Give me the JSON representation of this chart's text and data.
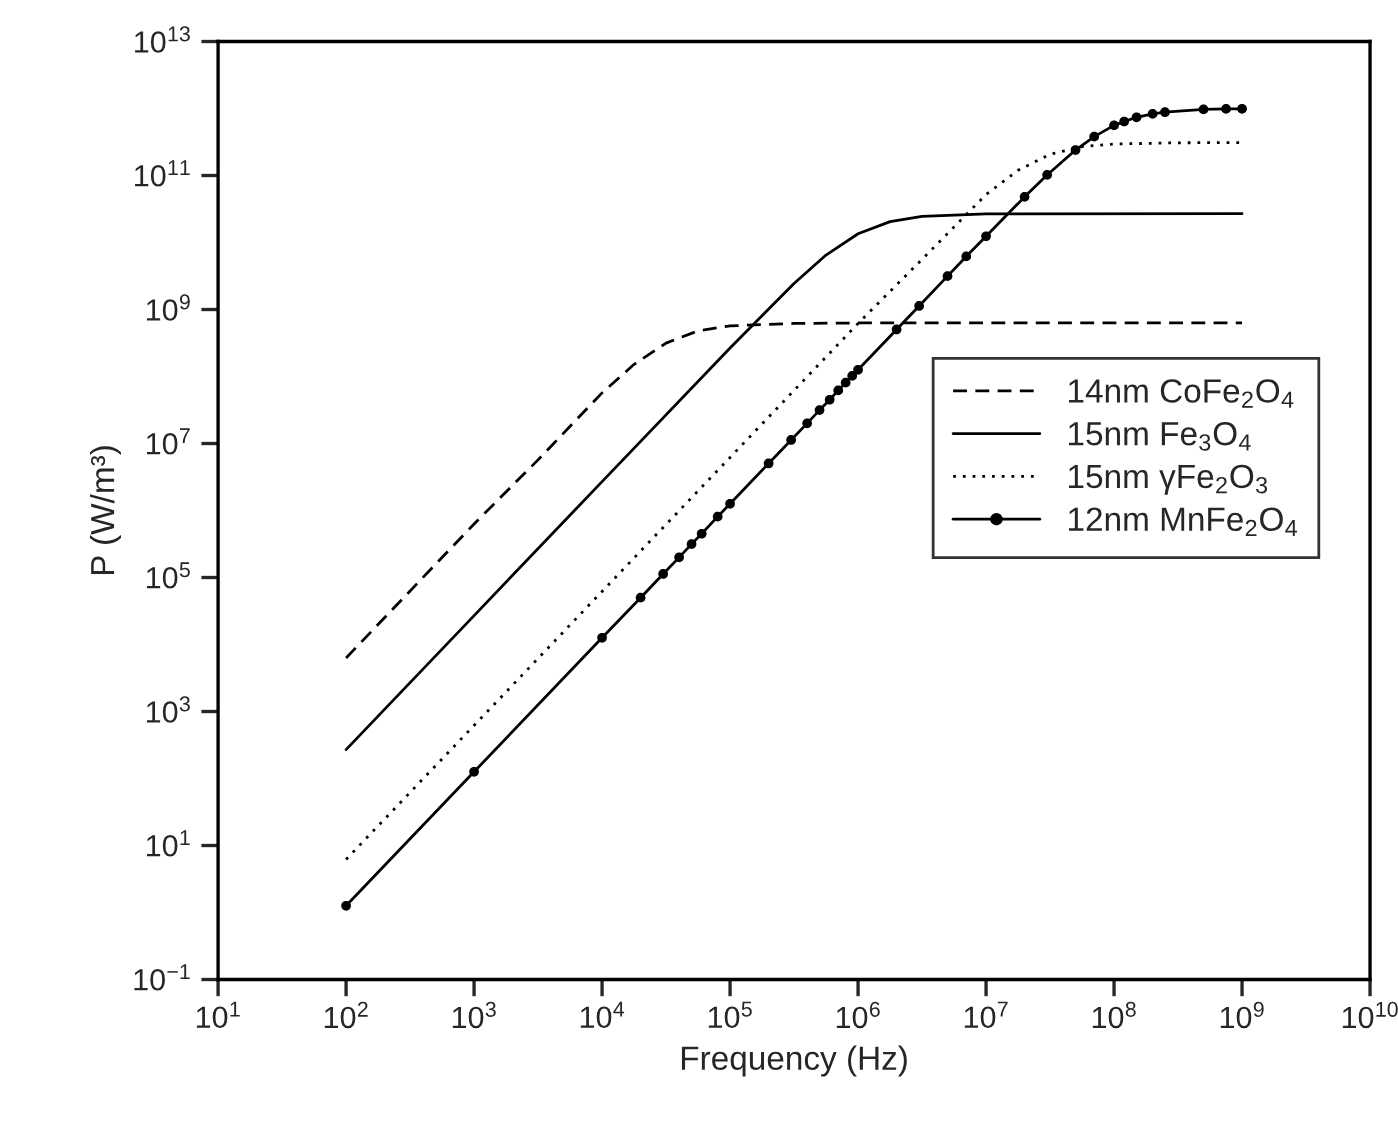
{
  "chart_data": {
    "type": "line",
    "xlabel": "Frequency (Hz)",
    "ylabel": "P (W/m³)",
    "log": "xy",
    "xlim": [
      10,
      10000000000
    ],
    "ylim": [
      0.1,
      10000000000000
    ],
    "xticks": [
      {
        "value": 10,
        "label": "10$^{1}$"
      },
      {
        "value": 100,
        "label": "10$^{2}$"
      },
      {
        "value": 1000,
        "label": "10$^{3}$"
      },
      {
        "value": 10000,
        "label": "10$^{4}$"
      },
      {
        "value": 100000,
        "label": "10$^{5}$"
      },
      {
        "value": 1000000,
        "label": "10$^{6}$"
      },
      {
        "value": 10000000,
        "label": "10$^{7}$"
      },
      {
        "value": 100000000,
        "label": "10$^{8}$"
      },
      {
        "value": 1000000000,
        "label": "10$^{9}$"
      },
      {
        "value": 10000000000,
        "label": "10$^{10}$"
      }
    ],
    "yticks": [
      {
        "value": 0.1,
        "label": "10$^{−1}$"
      },
      {
        "value": 10,
        "label": "10$^{1}$"
      },
      {
        "value": 1000,
        "label": "10$^{3}$"
      },
      {
        "value": 100000,
        "label": "10$^{5}$"
      },
      {
        "value": 10000000,
        "label": "10$^{7}$"
      },
      {
        "value": 1000000000,
        "label": "10$^{9}$"
      },
      {
        "value": 100000000000,
        "label": "10$^{11}$"
      },
      {
        "value": 10000000000000,
        "label": "10$^{13}$"
      }
    ],
    "grid": false,
    "legend": "right",
    "series": [
      {
        "name": "14nm CoFe$_{2}$O$_{4}$",
        "color": "#000000",
        "line_style": "dashed",
        "marker": "none",
        "x": [
          100,
          1000,
          3160,
          10000,
          17800,
          31600,
          56200,
          100000,
          316000,
          1000000,
          1000000000
        ],
        "values": [
          6300,
          630000,
          5700000,
          57000000,
          152000000,
          315000000,
          480000000,
          570000000,
          620000000,
          630000000,
          630000000
        ]
      },
      {
        "name": "15nm Fe$_{3}$O$_{4}$",
        "color": "#000000",
        "line_style": "solid",
        "marker": "none",
        "x": [
          100,
          1000,
          10000,
          100000,
          316000,
          562000,
          1000000,
          1780000,
          3160000,
          10000000,
          1000000000
        ],
        "values": [
          270,
          27000,
          2700000,
          267000000,
          2450000000,
          6500000000,
          13500000000,
          20500000000,
          24500000000,
          26700000000,
          27000000000
        ]
      },
      {
        "name": "15nm γFe$_{2}$O$_{3}$",
        "color": "#000000",
        "line_style": "dotted",
        "marker": "none",
        "x": [
          100,
          1000,
          10000,
          100000,
          1000000,
          3160000,
          10000000,
          17800000,
          31600000,
          56200000,
          100000000,
          316000000,
          1000000000
        ],
        "values": [
          6.2,
          620,
          62000,
          6200000,
          620000000,
          5600000000,
          52000000000,
          120000000000,
          207000000000,
          270000000000,
          295000000000,
          308000000000,
          310000000000
        ]
      },
      {
        "name": "12nm MnFe$_{2}$O$_{4}$",
        "color": "#000000",
        "line_style": "solid",
        "marker": "circle",
        "x": [
          100,
          1000,
          10000,
          20000,
          30000,
          40000,
          50000,
          60000,
          80000,
          100000,
          200000,
          300000,
          400000,
          500000,
          600000,
          700000,
          800000,
          900000,
          1000000,
          2000000,
          3000000,
          5000000,
          7000000,
          10000000,
          20000000,
          30000000,
          50000000,
          70000000,
          100000000,
          120000000,
          150000000,
          200000000,
          250000000,
          500000000,
          750000000,
          1000000000
        ],
        "values": [
          1.26,
          126,
          12600,
          50000,
          113000,
          200000,
          315000,
          450000,
          810000,
          1260000,
          5040000,
          11300000,
          20000000,
          31500000,
          45000000,
          62000000,
          81000000,
          102000000,
          126000000,
          504000000,
          1130000000,
          3150000000,
          6200000000,
          12400000000,
          48000000000,
          102000000000,
          240000000000,
          380000000000,
          560000000000,
          640000000000,
          740000000000,
          830000000000,
          880000000000,
          970000000000,
          986000000000,
          990000000000
        ]
      }
    ]
  }
}
